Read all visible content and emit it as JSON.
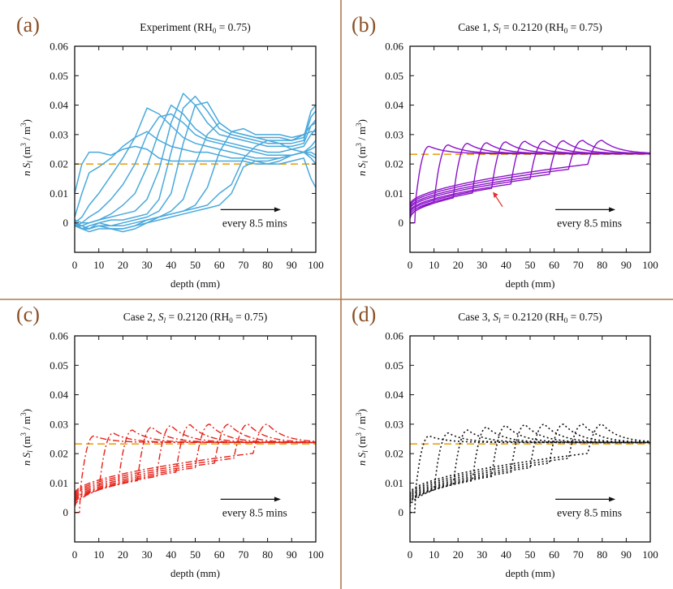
{
  "chart_data": [
    {
      "type": "line",
      "panel_label": "(a)",
      "title": "Experiment (RH0 = 0.75)",
      "title_parts": {
        "pre": "Experiment (RH",
        "sub": "0",
        "post": " = 0.75)"
      },
      "xlabel": "depth (mm)",
      "ylabel": "n Sl (m3 / m3)",
      "xlim": [
        0,
        100
      ],
      "ylim": [
        -0.01,
        0.06
      ],
      "xticks": [
        0,
        10,
        20,
        30,
        40,
        50,
        60,
        70,
        80,
        90,
        100
      ],
      "yticks": [
        "0",
        "0.01",
        "0.02",
        "0.03",
        "0.04",
        "0.05",
        "0.06"
      ],
      "ytick_values": [
        0,
        0.01,
        0.02,
        0.03,
        0.04,
        0.05,
        0.06
      ],
      "annotation": "every 8.5 mins",
      "line_color": "#4aa9dc",
      "style": "solid",
      "reference_line": {
        "value": 0.02,
        "color": "#e8a317",
        "style": "dashed"
      },
      "series": [
        {
          "name": "t1",
          "x": [
            0,
            3,
            6,
            10,
            15,
            20,
            25,
            30,
            35,
            40,
            45,
            50,
            55,
            60,
            65,
            70,
            75,
            80,
            85,
            90,
            95,
            98,
            100
          ],
          "y": [
            0.01,
            0.02,
            0.024,
            0.024,
            0.023,
            0.025,
            0.026,
            0.025,
            0.022,
            0.021,
            0.021,
            0.021,
            0.021,
            0.021,
            0.021,
            0.021,
            0.02,
            0.02,
            0.02,
            0.021,
            0.022,
            0.015,
            0.012
          ]
        },
        {
          "name": "t2",
          "x": [
            0,
            3,
            6,
            10,
            15,
            20,
            25,
            30,
            35,
            40,
            45,
            50,
            55,
            60,
            65,
            70,
            75,
            80,
            85,
            90,
            95,
            98,
            100
          ],
          "y": [
            0.002,
            0.01,
            0.017,
            0.019,
            0.022,
            0.026,
            0.029,
            0.031,
            0.028,
            0.026,
            0.025,
            0.024,
            0.024,
            0.023,
            0.022,
            0.022,
            0.021,
            0.021,
            0.022,
            0.023,
            0.024,
            0.022,
            0.02
          ]
        },
        {
          "name": "t3",
          "x": [
            0,
            3,
            6,
            10,
            15,
            20,
            25,
            30,
            35,
            40,
            45,
            50,
            55,
            60,
            65,
            70,
            75,
            80,
            85,
            90,
            95,
            98,
            100
          ],
          "y": [
            0.0,
            0.002,
            0.006,
            0.01,
            0.016,
            0.022,
            0.029,
            0.039,
            0.037,
            0.033,
            0.029,
            0.027,
            0.026,
            0.025,
            0.024,
            0.023,
            0.022,
            0.022,
            0.022,
            0.023,
            0.024,
            0.025,
            0.026
          ]
        },
        {
          "name": "t4",
          "x": [
            0,
            3,
            6,
            10,
            15,
            20,
            25,
            30,
            35,
            40,
            45,
            50,
            55,
            60,
            65,
            70,
            75,
            80,
            85,
            90,
            95,
            98,
            100
          ],
          "y": [
            -0.001,
            0.0,
            0.002,
            0.004,
            0.008,
            0.013,
            0.02,
            0.03,
            0.036,
            0.037,
            0.034,
            0.03,
            0.028,
            0.027,
            0.026,
            0.025,
            0.024,
            0.023,
            0.023,
            0.023,
            0.024,
            0.026,
            0.028
          ]
        },
        {
          "name": "t5",
          "x": [
            0,
            3,
            6,
            10,
            15,
            20,
            25,
            30,
            35,
            40,
            45,
            50,
            55,
            60,
            65,
            70,
            75,
            80,
            85,
            90,
            95,
            98,
            100
          ],
          "y": [
            -0.001,
            -0.001,
            0.0,
            0.001,
            0.003,
            0.006,
            0.01,
            0.019,
            0.031,
            0.04,
            0.037,
            0.032,
            0.029,
            0.028,
            0.027,
            0.026,
            0.025,
            0.024,
            0.024,
            0.025,
            0.026,
            0.03,
            0.032
          ]
        },
        {
          "name": "t6",
          "x": [
            0,
            3,
            6,
            10,
            15,
            20,
            25,
            30,
            35,
            40,
            45,
            50,
            55,
            60,
            65,
            70,
            75,
            80,
            85,
            90,
            95,
            98,
            100
          ],
          "y": [
            0.001,
            0.0,
            0.0,
            0.001,
            0.002,
            0.003,
            0.004,
            0.008,
            0.018,
            0.034,
            0.044,
            0.04,
            0.034,
            0.03,
            0.029,
            0.028,
            0.027,
            0.026,
            0.026,
            0.026,
            0.027,
            0.033,
            0.035
          ]
        },
        {
          "name": "t7",
          "x": [
            0,
            3,
            6,
            10,
            15,
            20,
            25,
            30,
            35,
            40,
            45,
            50,
            55,
            60,
            65,
            70,
            75,
            80,
            85,
            90,
            95,
            98,
            100
          ],
          "y": [
            -0.001,
            -0.002,
            -0.001,
            0.0,
            0.001,
            0.001,
            0.002,
            0.003,
            0.008,
            0.024,
            0.039,
            0.043,
            0.038,
            0.032,
            0.03,
            0.029,
            0.028,
            0.027,
            0.027,
            0.027,
            0.028,
            0.036,
            0.038
          ]
        },
        {
          "name": "t8",
          "x": [
            0,
            3,
            6,
            10,
            15,
            20,
            25,
            30,
            35,
            40,
            45,
            50,
            55,
            60,
            65,
            70,
            75,
            80,
            85,
            90,
            95,
            98,
            100
          ],
          "y": [
            0.0,
            -0.002,
            -0.002,
            -0.001,
            -0.001,
            0.0,
            0.001,
            0.002,
            0.004,
            0.01,
            0.027,
            0.04,
            0.041,
            0.034,
            0.031,
            0.03,
            0.029,
            0.028,
            0.028,
            0.028,
            0.029,
            0.038,
            0.04
          ]
        },
        {
          "name": "t9",
          "x": [
            0,
            3,
            6,
            10,
            15,
            20,
            25,
            30,
            35,
            40,
            45,
            50,
            55,
            60,
            65,
            70,
            75,
            80,
            85,
            90,
            95,
            98,
            100
          ],
          "y": [
            -0.001,
            -0.002,
            -0.003,
            -0.002,
            -0.002,
            -0.003,
            -0.002,
            0.0,
            0.002,
            0.004,
            0.008,
            0.02,
            0.03,
            0.034,
            0.031,
            0.03,
            0.029,
            0.029,
            0.029,
            0.028,
            0.03,
            0.033,
            0.034
          ]
        },
        {
          "name": "t10",
          "x": [
            0,
            3,
            6,
            10,
            15,
            20,
            25,
            30,
            35,
            40,
            45,
            50,
            55,
            60,
            65,
            70,
            75,
            80,
            85,
            90,
            95,
            98,
            100
          ],
          "y": [
            0.0,
            -0.002,
            -0.002,
            -0.001,
            -0.002,
            -0.002,
            -0.001,
            0.001,
            0.002,
            0.003,
            0.004,
            0.006,
            0.012,
            0.024,
            0.031,
            0.032,
            0.03,
            0.03,
            0.03,
            0.029,
            0.03,
            0.031,
            0.031
          ]
        },
        {
          "name": "t11",
          "x": [
            0,
            3,
            6,
            10,
            15,
            20,
            25,
            30,
            35,
            40,
            45,
            50,
            55,
            60,
            65,
            70,
            75,
            80,
            85,
            90,
            95,
            98,
            100
          ],
          "y": [
            0.0,
            -0.002,
            -0.002,
            0.0,
            -0.001,
            -0.001,
            0.0,
            0.001,
            0.002,
            0.003,
            0.004,
            0.005,
            0.006,
            0.01,
            0.013,
            0.022,
            0.026,
            0.028,
            0.027,
            0.025,
            0.024,
            0.023,
            0.022
          ]
        },
        {
          "name": "t12",
          "x": [
            0,
            3,
            6,
            10,
            15,
            20,
            25,
            30,
            35,
            40,
            45,
            50,
            55,
            60,
            65,
            70,
            75,
            80,
            85,
            90,
            95,
            98,
            100
          ],
          "y": [
            0.0,
            -0.001,
            -0.002,
            -0.001,
            -0.002,
            -0.002,
            -0.001,
            0.0,
            0.001,
            0.002,
            0.003,
            0.004,
            0.005,
            0.006,
            0.01,
            0.019,
            0.021,
            0.02,
            0.021,
            0.023,
            0.024,
            0.024,
            0.023
          ]
        }
      ]
    },
    {
      "type": "line",
      "panel_label": "(b)",
      "title": "Case 1, Sl = 0.2120 (RH0 = 0.75)",
      "title_parts": {
        "pre": "Case 1, ",
        "ital": "S",
        "ital_sub": "l",
        "mid": " = 0.2120 (RH",
        "sub": "0",
        "post": " = 0.75)"
      },
      "xlabel": "depth (mm)",
      "ylabel": "n Sl (m3 / m3)",
      "xlim": [
        0,
        100
      ],
      "ylim": [
        -0.01,
        0.06
      ],
      "xticks": [
        0,
        10,
        20,
        30,
        40,
        50,
        60,
        70,
        80,
        90,
        100
      ],
      "yticks": [
        "0",
        "0.01",
        "0.02",
        "0.03",
        "0.04",
        "0.05",
        "0.06"
      ],
      "ytick_values": [
        0,
        0.01,
        0.02,
        0.03,
        0.04,
        0.05,
        0.06
      ],
      "annotation": "every 8.5 mins",
      "line_color": "#8b12c9",
      "style": "solid",
      "reference_line": {
        "value": 0.0233,
        "color": "#e8a317",
        "style": "dashed"
      },
      "front_positions_mm": [
        8,
        16,
        24,
        32,
        40,
        48,
        56,
        64,
        72,
        80
      ],
      "peak_values": [
        0.026,
        0.0265,
        0.027,
        0.0272,
        0.0275,
        0.0277,
        0.0278,
        0.0279,
        0.028,
        0.028
      ],
      "surface_values": [
        0.0,
        0.0015,
        0.002,
        0.0028,
        0.0035,
        0.004,
        0.0047,
        0.0052,
        0.0058,
        0.0063
      ],
      "plateau_value": 0.0235,
      "arrow_annotation": {
        "color": "#e53030",
        "points_to": "lower-curve-bundle"
      }
    },
    {
      "type": "line",
      "panel_label": "(c)",
      "title": "Case 2, Sl = 0.2120 (RH0 = 0.75)",
      "title_parts": {
        "pre": "Case 2, ",
        "ital": "S",
        "ital_sub": "l",
        "mid": " = 0.2120 (RH",
        "sub": "0",
        "post": " = 0.75)"
      },
      "xlabel": "depth (mm)",
      "ylabel": "n Sl (m3 / m3)",
      "xlim": [
        0,
        100
      ],
      "ylim": [
        -0.01,
        0.06
      ],
      "xticks": [
        0,
        10,
        20,
        30,
        40,
        50,
        60,
        70,
        80,
        90,
        100
      ],
      "yticks": [
        "0",
        "0.01",
        "0.02",
        "0.03",
        "0.04",
        "0.05",
        "0.06"
      ],
      "ytick_values": [
        0,
        0.01,
        0.02,
        0.03,
        0.04,
        0.05,
        0.06
      ],
      "annotation": "every 8.5 mins",
      "line_color": "#e5231b",
      "style": "dash-dot",
      "reference_line": {
        "value": 0.0233,
        "color": "#e8a317",
        "style": "dashed"
      },
      "front_positions_mm": [
        8,
        16,
        24,
        32,
        40,
        48,
        56,
        64,
        72,
        80
      ],
      "peak_values": [
        0.026,
        0.027,
        0.028,
        0.029,
        0.0295,
        0.0298,
        0.03,
        0.03,
        0.03,
        0.03
      ],
      "surface_values": [
        0.0,
        0.002,
        0.003,
        0.0035,
        0.004,
        0.0045,
        0.005,
        0.0055,
        0.006,
        0.0065
      ],
      "plateau_value": 0.0238
    },
    {
      "type": "line",
      "panel_label": "(d)",
      "title": "Case 3, Sl = 0.2120 (RH0 = 0.75)",
      "title_parts": {
        "pre": "Case 3, ",
        "ital": "S",
        "ital_sub": "l",
        "mid": " = 0.2120 (RH",
        "sub": "0",
        "post": " = 0.75)"
      },
      "xlabel": "depth (mm)",
      "ylabel": "n Sl (m3 / m3)",
      "xlim": [
        0,
        100
      ],
      "ylim": [
        -0.01,
        0.06
      ],
      "xticks": [
        0,
        10,
        20,
        30,
        40,
        50,
        60,
        70,
        80,
        90,
        100
      ],
      "yticks": [
        "0",
        "0.01",
        "0.02",
        "0.03",
        "0.04",
        "0.05",
        "0.06"
      ],
      "ytick_values": [
        0,
        0.01,
        0.02,
        0.03,
        0.04,
        0.05,
        0.06
      ],
      "annotation": "every 8.5 mins",
      "line_color": "#111111",
      "style": "dotted",
      "reference_line": {
        "value": 0.0233,
        "color": "#e8a317",
        "style": "dashed"
      },
      "front_positions_mm": [
        8,
        16,
        24,
        32,
        40,
        48,
        56,
        64,
        72,
        80
      ],
      "peak_values": [
        0.026,
        0.027,
        0.028,
        0.029,
        0.0295,
        0.0298,
        0.03,
        0.03,
        0.03,
        0.03
      ],
      "surface_values": [
        0.0,
        0.002,
        0.003,
        0.0035,
        0.004,
        0.0045,
        0.005,
        0.0055,
        0.006,
        0.0065
      ],
      "plateau_value": 0.0238
    }
  ],
  "divider_color": "#b07a4f",
  "panel_letter_color": "#8a4f24"
}
